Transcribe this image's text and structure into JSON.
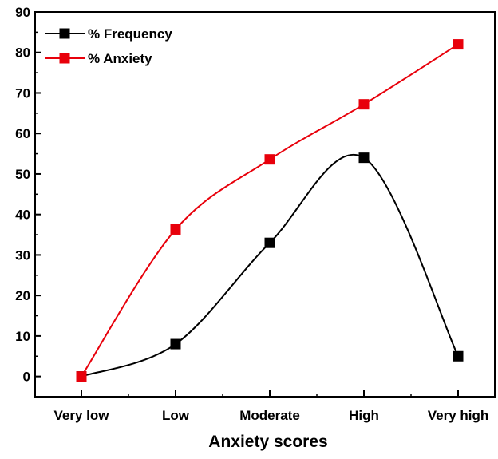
{
  "chart_data": {
    "type": "line",
    "categories": [
      "Very low",
      "Low",
      "Moderate",
      "High",
      "Very high"
    ],
    "series": [
      {
        "name": "% Frequency",
        "values": [
          0,
          8,
          33,
          54,
          5
        ],
        "color": "#000000",
        "marker": "square",
        "smooth": true
      },
      {
        "name": "% Anxiety",
        "values": [
          0,
          36.3,
          53.6,
          67.2,
          82
        ],
        "color": "#e8000b",
        "marker": "square",
        "smooth": true
      }
    ],
    "xlabel": "Anxiety scores",
    "ylabel": "",
    "ylim": [
      -5,
      90
    ],
    "yticks": [
      0,
      10,
      20,
      30,
      40,
      50,
      60,
      70,
      80,
      90
    ],
    "grid": false,
    "legend_position": "top-left"
  }
}
